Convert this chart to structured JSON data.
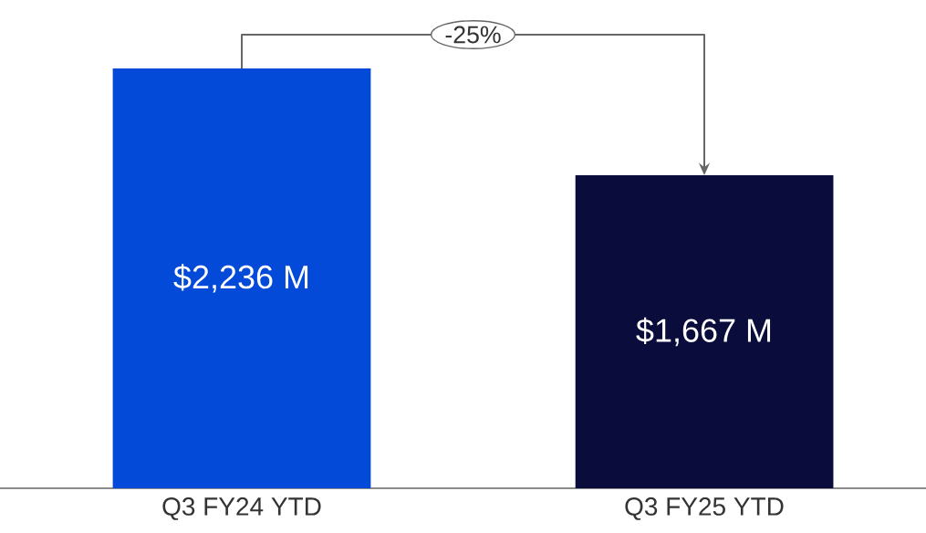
{
  "chart_data": {
    "type": "bar",
    "categories": [
      "Q3 FY24 YTD",
      "Q3 FY25 YTD"
    ],
    "values": [
      2236,
      1667
    ],
    "colors": [
      "#034ad8",
      "#0a0c3c"
    ],
    "value_labels": [
      "$2,236 M",
      "$1,667 M"
    ],
    "annotations": [
      "-25%"
    ],
    "tick_labels": "x"
  }
}
